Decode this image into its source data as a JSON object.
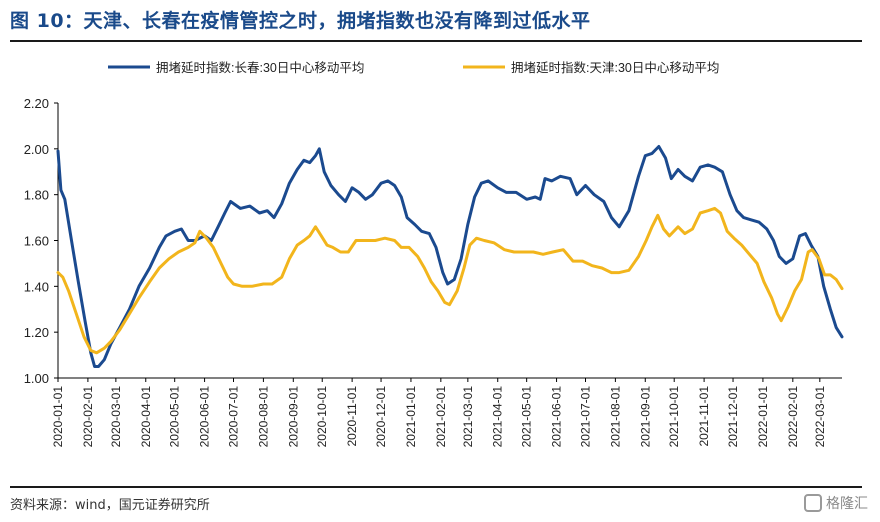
{
  "title": "图 10：天津、长春在疫情管控之时，拥堵指数也没有降到过低水平",
  "source": "资料来源：wind，国元证券研究所",
  "watermark": "格隆汇",
  "colors": {
    "changchun": "#1b4a8f",
    "tianjin": "#f2b51c",
    "title": "#1a4a8a"
  },
  "chart_data": {
    "type": "line",
    "title": "",
    "xlabel": "",
    "ylabel": "",
    "ylim": [
      1.0,
      2.2
    ],
    "yticks": [
      "1.00",
      "1.20",
      "1.40",
      "1.60",
      "1.80",
      "2.00",
      "2.20"
    ],
    "xticks": [
      "2020-01-01",
      "2020-02-01",
      "2020-03-01",
      "2020-04-01",
      "2020-05-01",
      "2020-06-01",
      "2020-07-01",
      "2020-08-01",
      "2020-09-01",
      "2020-10-01",
      "2020-11-01",
      "2020-12-01",
      "2021-01-01",
      "2021-02-01",
      "2021-03-01",
      "2021-04-01",
      "2021-05-01",
      "2021-06-01",
      "2021-07-01",
      "2021-08-01",
      "2021-09-01",
      "2021-10-01",
      "2021-11-01",
      "2021-12-01",
      "2022-01-01",
      "2022-02-01",
      "2022-03-01"
    ],
    "xrange": [
      "2020-01-01",
      "2022-03-24"
    ],
    "grid": false,
    "legend_position": "top",
    "series": [
      {
        "name": "拥堵延时指数:长春:30日中心移动平均",
        "color": "#1b4a8f",
        "points": [
          [
            "2020-01-01",
            1.99
          ],
          [
            "2020-01-04",
            1.82
          ],
          [
            "2020-01-08",
            1.78
          ],
          [
            "2020-01-15",
            1.6
          ],
          [
            "2020-01-22",
            1.42
          ],
          [
            "2020-01-29",
            1.25
          ],
          [
            "2020-02-04",
            1.11
          ],
          [
            "2020-02-08",
            1.05
          ],
          [
            "2020-02-12",
            1.05
          ],
          [
            "2020-02-18",
            1.08
          ],
          [
            "2020-02-25",
            1.15
          ],
          [
            "2020-03-05",
            1.22
          ],
          [
            "2020-03-15",
            1.3
          ],
          [
            "2020-03-25",
            1.4
          ],
          [
            "2020-04-05",
            1.48
          ],
          [
            "2020-04-15",
            1.57
          ],
          [
            "2020-04-22",
            1.62
          ],
          [
            "2020-05-01",
            1.64
          ],
          [
            "2020-05-08",
            1.65
          ],
          [
            "2020-05-15",
            1.6
          ],
          [
            "2020-05-22",
            1.6
          ],
          [
            "2020-06-01",
            1.62
          ],
          [
            "2020-06-08",
            1.6
          ],
          [
            "2020-06-15",
            1.66
          ],
          [
            "2020-06-22",
            1.72
          ],
          [
            "2020-06-28",
            1.77
          ],
          [
            "2020-07-08",
            1.74
          ],
          [
            "2020-07-18",
            1.75
          ],
          [
            "2020-07-28",
            1.72
          ],
          [
            "2020-08-05",
            1.73
          ],
          [
            "2020-08-12",
            1.7
          ],
          [
            "2020-08-20",
            1.76
          ],
          [
            "2020-08-28",
            1.85
          ],
          [
            "2020-09-05",
            1.91
          ],
          [
            "2020-09-12",
            1.95
          ],
          [
            "2020-09-18",
            1.94
          ],
          [
            "2020-09-24",
            1.97
          ],
          [
            "2020-09-28",
            2.0
          ],
          [
            "2020-10-03",
            1.9
          ],
          [
            "2020-10-10",
            1.84
          ],
          [
            "2020-10-18",
            1.8
          ],
          [
            "2020-10-25",
            1.77
          ],
          [
            "2020-11-01",
            1.83
          ],
          [
            "2020-11-08",
            1.81
          ],
          [
            "2020-11-15",
            1.78
          ],
          [
            "2020-11-22",
            1.8
          ],
          [
            "2020-12-01",
            1.85
          ],
          [
            "2020-12-08",
            1.86
          ],
          [
            "2020-12-15",
            1.84
          ],
          [
            "2020-12-22",
            1.79
          ],
          [
            "2020-12-28",
            1.7
          ],
          [
            "2021-01-05",
            1.67
          ],
          [
            "2021-01-12",
            1.64
          ],
          [
            "2021-01-20",
            1.63
          ],
          [
            "2021-01-27",
            1.57
          ],
          [
            "2021-02-03",
            1.46
          ],
          [
            "2021-02-08",
            1.41
          ],
          [
            "2021-02-15",
            1.43
          ],
          [
            "2021-02-22",
            1.52
          ],
          [
            "2021-03-01",
            1.67
          ],
          [
            "2021-03-08",
            1.79
          ],
          [
            "2021-03-15",
            1.85
          ],
          [
            "2021-03-22",
            1.86
          ],
          [
            "2021-04-01",
            1.83
          ],
          [
            "2021-04-10",
            1.81
          ],
          [
            "2021-04-20",
            1.81
          ],
          [
            "2021-05-01",
            1.78
          ],
          [
            "2021-05-10",
            1.79
          ],
          [
            "2021-05-15",
            1.78
          ],
          [
            "2021-05-20",
            1.87
          ],
          [
            "2021-05-27",
            1.86
          ],
          [
            "2021-06-05",
            1.88
          ],
          [
            "2021-06-15",
            1.87
          ],
          [
            "2021-06-22",
            1.8
          ],
          [
            "2021-07-01",
            1.84
          ],
          [
            "2021-07-10",
            1.8
          ],
          [
            "2021-07-20",
            1.77
          ],
          [
            "2021-07-28",
            1.7
          ],
          [
            "2021-08-05",
            1.66
          ],
          [
            "2021-08-15",
            1.73
          ],
          [
            "2021-08-25",
            1.88
          ],
          [
            "2021-09-01",
            1.97
          ],
          [
            "2021-09-08",
            1.98
          ],
          [
            "2021-09-15",
            2.01
          ],
          [
            "2021-09-22",
            1.96
          ],
          [
            "2021-09-28",
            1.87
          ],
          [
            "2021-10-05",
            1.91
          ],
          [
            "2021-10-12",
            1.88
          ],
          [
            "2021-10-20",
            1.86
          ],
          [
            "2021-10-28",
            1.92
          ],
          [
            "2021-11-05",
            1.93
          ],
          [
            "2021-11-12",
            1.92
          ],
          [
            "2021-11-20",
            1.9
          ],
          [
            "2021-11-28",
            1.8
          ],
          [
            "2021-12-05",
            1.73
          ],
          [
            "2021-12-12",
            1.7
          ],
          [
            "2021-12-20",
            1.69
          ],
          [
            "2021-12-28",
            1.68
          ],
          [
            "2022-01-05",
            1.65
          ],
          [
            "2022-01-12",
            1.6
          ],
          [
            "2022-01-18",
            1.53
          ],
          [
            "2022-01-25",
            1.5
          ],
          [
            "2022-02-01",
            1.52
          ],
          [
            "2022-02-08",
            1.62
          ],
          [
            "2022-02-14",
            1.63
          ],
          [
            "2022-02-20",
            1.58
          ],
          [
            "2022-02-27",
            1.53
          ],
          [
            "2022-03-05",
            1.4
          ],
          [
            "2022-03-12",
            1.3
          ],
          [
            "2022-03-18",
            1.22
          ],
          [
            "2022-03-24",
            1.18
          ]
        ]
      },
      {
        "name": "拥堵延时指数:天津:30日中心移动平均",
        "color": "#f2b51c",
        "points": [
          [
            "2020-01-01",
            1.46
          ],
          [
            "2020-01-06",
            1.44
          ],
          [
            "2020-01-12",
            1.38
          ],
          [
            "2020-01-20",
            1.28
          ],
          [
            "2020-01-28",
            1.18
          ],
          [
            "2020-02-04",
            1.12
          ],
          [
            "2020-02-10",
            1.11
          ],
          [
            "2020-02-18",
            1.13
          ],
          [
            "2020-02-25",
            1.16
          ],
          [
            "2020-03-05",
            1.21
          ],
          [
            "2020-03-15",
            1.28
          ],
          [
            "2020-03-25",
            1.35
          ],
          [
            "2020-04-05",
            1.42
          ],
          [
            "2020-04-15",
            1.48
          ],
          [
            "2020-04-25",
            1.52
          ],
          [
            "2020-05-05",
            1.55
          ],
          [
            "2020-05-15",
            1.57
          ],
          [
            "2020-05-22",
            1.59
          ],
          [
            "2020-05-27",
            1.64
          ],
          [
            "2020-06-03",
            1.61
          ],
          [
            "2020-06-10",
            1.57
          ],
          [
            "2020-06-18",
            1.5
          ],
          [
            "2020-06-25",
            1.44
          ],
          [
            "2020-07-01",
            1.41
          ],
          [
            "2020-07-10",
            1.4
          ],
          [
            "2020-07-20",
            1.4
          ],
          [
            "2020-08-01",
            1.41
          ],
          [
            "2020-08-10",
            1.41
          ],
          [
            "2020-08-20",
            1.44
          ],
          [
            "2020-08-28",
            1.52
          ],
          [
            "2020-09-05",
            1.58
          ],
          [
            "2020-09-12",
            1.6
          ],
          [
            "2020-09-18",
            1.62
          ],
          [
            "2020-09-24",
            1.66
          ],
          [
            "2020-09-30",
            1.62
          ],
          [
            "2020-10-06",
            1.58
          ],
          [
            "2020-10-12",
            1.57
          ],
          [
            "2020-10-20",
            1.55
          ],
          [
            "2020-10-28",
            1.55
          ],
          [
            "2020-11-05",
            1.6
          ],
          [
            "2020-11-15",
            1.6
          ],
          [
            "2020-11-25",
            1.6
          ],
          [
            "2020-12-05",
            1.61
          ],
          [
            "2020-12-15",
            1.6
          ],
          [
            "2020-12-22",
            1.57
          ],
          [
            "2020-12-30",
            1.57
          ],
          [
            "2021-01-08",
            1.53
          ],
          [
            "2021-01-15",
            1.48
          ],
          [
            "2021-01-22",
            1.42
          ],
          [
            "2021-01-29",
            1.38
          ],
          [
            "2021-02-05",
            1.33
          ],
          [
            "2021-02-10",
            1.32
          ],
          [
            "2021-02-18",
            1.38
          ],
          [
            "2021-02-25",
            1.48
          ],
          [
            "2021-03-03",
            1.58
          ],
          [
            "2021-03-10",
            1.61
          ],
          [
            "2021-03-18",
            1.6
          ],
          [
            "2021-03-28",
            1.59
          ],
          [
            "2021-04-08",
            1.56
          ],
          [
            "2021-04-18",
            1.55
          ],
          [
            "2021-04-28",
            1.55
          ],
          [
            "2021-05-08",
            1.55
          ],
          [
            "2021-05-18",
            1.54
          ],
          [
            "2021-05-28",
            1.55
          ],
          [
            "2021-06-08",
            1.56
          ],
          [
            "2021-06-18",
            1.51
          ],
          [
            "2021-06-28",
            1.51
          ],
          [
            "2021-07-08",
            1.49
          ],
          [
            "2021-07-18",
            1.48
          ],
          [
            "2021-07-28",
            1.46
          ],
          [
            "2021-08-05",
            1.46
          ],
          [
            "2021-08-15",
            1.47
          ],
          [
            "2021-08-25",
            1.53
          ],
          [
            "2021-09-02",
            1.6
          ],
          [
            "2021-09-08",
            1.66
          ],
          [
            "2021-09-14",
            1.71
          ],
          [
            "2021-09-20",
            1.65
          ],
          [
            "2021-09-26",
            1.62
          ],
          [
            "2021-10-05",
            1.66
          ],
          [
            "2021-10-12",
            1.63
          ],
          [
            "2021-10-20",
            1.65
          ],
          [
            "2021-10-28",
            1.72
          ],
          [
            "2021-11-05",
            1.73
          ],
          [
            "2021-11-12",
            1.74
          ],
          [
            "2021-11-18",
            1.72
          ],
          [
            "2021-11-25",
            1.64
          ],
          [
            "2021-12-02",
            1.61
          ],
          [
            "2021-12-10",
            1.58
          ],
          [
            "2021-12-18",
            1.54
          ],
          [
            "2021-12-26",
            1.5
          ],
          [
            "2022-01-02",
            1.42
          ],
          [
            "2022-01-10",
            1.35
          ],
          [
            "2022-01-16",
            1.28
          ],
          [
            "2022-01-20",
            1.25
          ],
          [
            "2022-01-27",
            1.31
          ],
          [
            "2022-02-03",
            1.38
          ],
          [
            "2022-02-10",
            1.43
          ],
          [
            "2022-02-17",
            1.55
          ],
          [
            "2022-02-21",
            1.56
          ],
          [
            "2022-02-28",
            1.52
          ],
          [
            "2022-03-06",
            1.45
          ],
          [
            "2022-03-12",
            1.45
          ],
          [
            "2022-03-18",
            1.43
          ],
          [
            "2022-03-24",
            1.39
          ]
        ]
      }
    ]
  }
}
